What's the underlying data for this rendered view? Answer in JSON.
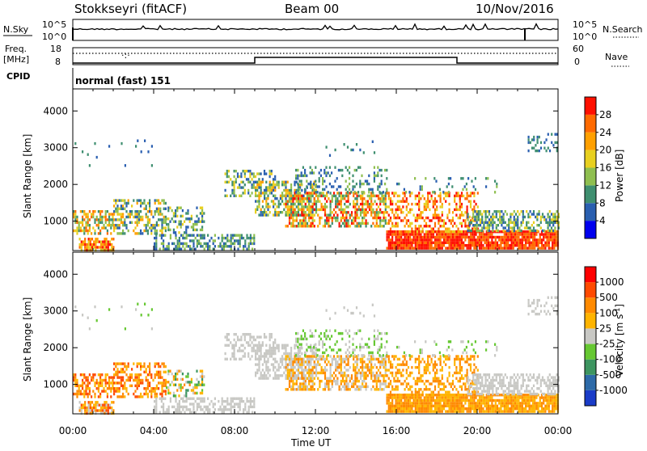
{
  "header": {
    "station": "Stokkseyri (fitACF)",
    "beam": "Beam 00",
    "date": "10/Nov/2016"
  },
  "panels_top": {
    "nsky_label": "N.Sky",
    "nsearch_label": "N.Search",
    "nsky_ticks": [
      "10^5",
      "10^0"
    ],
    "nsearch_ticks": [
      "10^5",
      "10^0"
    ],
    "freq_label_1": "Freq.",
    "freq_label_2": "[MHz]",
    "freq_ticks": [
      "18",
      "8"
    ],
    "nave_label": "Nave",
    "nave_ticks": [
      "60",
      "0"
    ],
    "cpid_label": "CPID",
    "cpid_value": "normal (fast) 151"
  },
  "chart_data": [
    {
      "type": "heatmap",
      "name": "power",
      "ylabel": "Slant Range [km]",
      "xlabel": "Time UT",
      "x_ticks": [
        "00:00",
        "04:00",
        "08:00",
        "12:00",
        "16:00",
        "20:00",
        "00:00"
      ],
      "y_ticks": [
        1000,
        2000,
        3000,
        4000
      ],
      "ylim": [
        200,
        4600
      ],
      "xlim_hours": [
        0,
        24
      ],
      "colorbar": {
        "label": "Power [dB]",
        "ticks": [
          4,
          8,
          12,
          16,
          20,
          24,
          28
        ],
        "range": [
          0,
          32
        ],
        "colors": [
          "#0000ee",
          "#2a5fb0",
          "#3f8f70",
          "#8fbf50",
          "#e8d020",
          "#ffa000",
          "#ff6a00",
          "#ff1000"
        ]
      }
    },
    {
      "type": "heatmap",
      "name": "velocity",
      "ylabel": "Slant Range [km]",
      "xlabel": "Time UT",
      "x_ticks": [
        "00:00",
        "04:00",
        "08:00",
        "12:00",
        "16:00",
        "20:00",
        "00:00"
      ],
      "y_ticks": [
        1000,
        2000,
        3000,
        4000
      ],
      "ylim": [
        200,
        4600
      ],
      "xlim_hours": [
        0,
        24
      ],
      "colorbar": {
        "label": "Velocity [m s",
        "label_sup": "-1",
        "label_end": "]",
        "ticks": [
          "1000",
          "500",
          "100",
          "25",
          "-25",
          "-100",
          "-500",
          "-1000"
        ],
        "colors": [
          "#1a3cc8",
          "#2d6aa8",
          "#3d9560",
          "#66c832",
          "#c8c8c4",
          "#ffb400",
          "#ff8a00",
          "#ff4a00",
          "#ff0000"
        ]
      }
    }
  ]
}
